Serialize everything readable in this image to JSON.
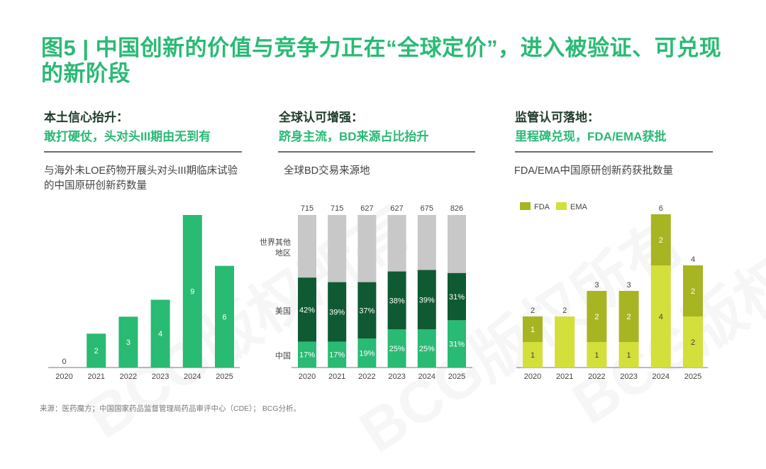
{
  "title": "图5 | 中国创新的价值与竞争力正在“全球定价”，进入被验证、可兑现的新阶段",
  "colors": {
    "brand_green": "#29ba74",
    "dark_green": "#0f5a32",
    "grey": "#c8c8c8",
    "fda_olive": "#a7b522",
    "ema_lime": "#d3df3a"
  },
  "panels": [
    {
      "heading": "本土信心抬升：",
      "subheading": "敢打硬仗，头对头III期由无到有",
      "description": "与海外未LOE药物开展头对头III期临床试验的中国原研创新药数量"
    },
    {
      "heading": "全球认可增强：",
      "subheading": "跻身主流，BD来源占比抬升",
      "description": "全球BD交易来源地"
    },
    {
      "heading": "监管认可落地：",
      "subheading": "里程碑兑现，FDA/EMA获批",
      "description": "FDA/EMA中国原研创新药获批数量"
    }
  ],
  "chart_data": [
    {
      "type": "bar",
      "title": "与海外未LOE药物开展头对头III期临床试验的中国原研创新药数量",
      "categories": [
        "2020",
        "2021",
        "2022",
        "2023",
        "2024",
        "2025"
      ],
      "values": [
        0,
        2,
        3,
        4,
        9,
        6
      ],
      "xlabel": "",
      "ylabel": "",
      "ylim": [
        0,
        9
      ],
      "grid": false
    },
    {
      "type": "bar",
      "stacked": "percent",
      "title": "全球BD交易来源地",
      "categories": [
        "2020",
        "2021",
        "2022",
        "2023",
        "2024",
        "2025"
      ],
      "totals": [
        715,
        715,
        627,
        627,
        675,
        826
      ],
      "series": [
        {
          "name": "中国",
          "values": [
            17,
            17,
            19,
            25,
            25,
            31
          ],
          "unit": "%"
        },
        {
          "name": "美国",
          "values": [
            42,
            39,
            37,
            38,
            39,
            31
          ],
          "unit": "%"
        },
        {
          "name": "世界其他地区",
          "values": [
            41,
            44,
            44,
            37,
            36,
            38
          ],
          "unit": "%"
        }
      ],
      "series_labels": [
        "中国",
        "美国",
        "世界其他\n地区"
      ],
      "ylim": [
        0,
        100
      ],
      "grid": false
    },
    {
      "type": "bar",
      "stacked": "absolute",
      "title": "FDA/EMA中国原研创新药获批数量",
      "categories": [
        "2020",
        "2021",
        "2022",
        "2023",
        "2024",
        "2025"
      ],
      "series": [
        {
          "name": "EMA",
          "values": [
            1,
            2,
            1,
            1,
            4,
            2
          ]
        },
        {
          "name": "FDA",
          "values": [
            1,
            0,
            2,
            2,
            2,
            2
          ]
        }
      ],
      "totals": [
        2,
        2,
        3,
        3,
        6,
        4
      ],
      "legend": [
        "FDA",
        "EMA"
      ],
      "legend_position": "top-left",
      "ylim": [
        0,
        6
      ],
      "grid": false
    }
  ],
  "watermark": "BCG版权所有",
  "footer": "来源：医药魔方；中国国家药品监督管理局药品审评中心（CDE）； BCG分析。"
}
